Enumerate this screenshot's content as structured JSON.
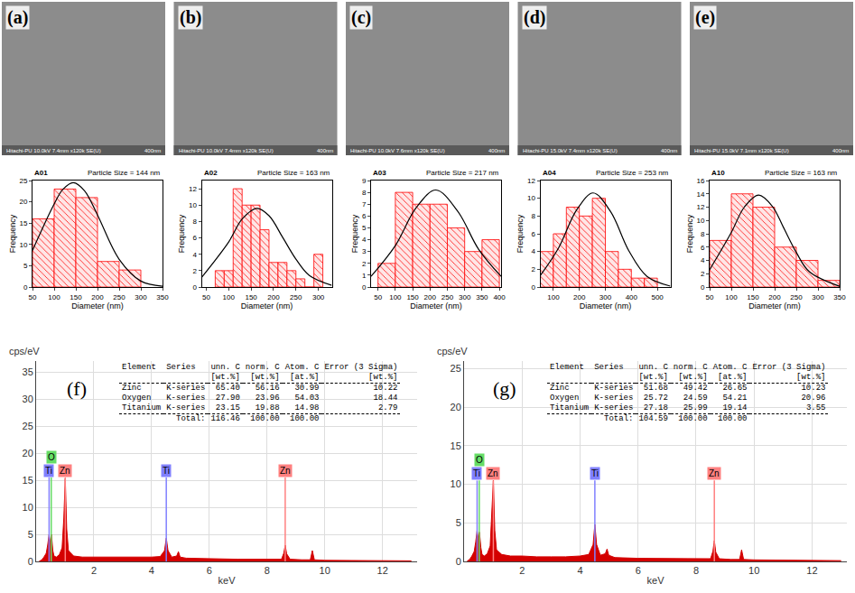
{
  "images": [
    {
      "label": "(a)",
      "info": "Hitachi-PU 10.0kV 7.4mm x120k SE(U)",
      "scale_bar": "400nm"
    },
    {
      "label": "(b)",
      "info": "Hitachi-PU 10.0kV 7.4mm x120k SE(U)",
      "scale_bar": "400nm"
    },
    {
      "label": "(c)",
      "info": "Hitachi-PU 10.0kV 7.6mm x120k SE(U)",
      "scale_bar": "400nm"
    },
    {
      "label": "(d)",
      "info": "Hitachi-PU 15.0kV 7.4mm x120k SE(U)",
      "scale_bar": "400nm"
    },
    {
      "label": "(e)",
      "info": "Hitachi-PU 15.0kV 7.1mm x120k SE(U)",
      "scale_bar": "400nm"
    }
  ],
  "chart_data": [
    {
      "type": "histogram",
      "title": "A01",
      "subtitle": "Particle Size = 144 nm",
      "x_label": "Diameter (nm)",
      "y_label": "Frequency",
      "bins": [
        50,
        100,
        150,
        200,
        250,
        300
      ],
      "counts": [
        16,
        23,
        21,
        6,
        4
      ],
      "color": "#ff0000",
      "curve": {
        "x": [
          50,
          100,
          120,
          144,
          170,
          200,
          250,
          300,
          350
        ],
        "y": [
          8.6,
          19.5,
          22.9,
          24.5,
          22.6,
          16.9,
          6.5,
          1.4,
          0.2
        ],
        "color": "#000000"
      },
      "xlim": [
        50,
        350
      ],
      "xticks": [
        50,
        100,
        150,
        200,
        250,
        300,
        350
      ],
      "ylim": [
        0,
        25
      ],
      "yticks": [
        0,
        5,
        10,
        15,
        20,
        25
      ],
      "grid": false
    },
    {
      "type": "histogram",
      "title": "A02",
      "subtitle": "Particle Size = 163 nm",
      "x_label": "Diameter (nm)",
      "y_label": "Frequency",
      "bins": [
        70,
        90,
        110,
        130,
        150,
        170,
        190,
        210,
        230,
        250,
        270,
        290,
        310
      ],
      "counts": [
        2,
        2,
        12,
        10,
        10,
        7,
        3,
        3,
        2,
        1,
        0,
        4
      ],
      "color": "#ff0000",
      "curve": {
        "x": [
          40,
          100,
          130,
          163,
          190,
          220,
          250,
          280,
          330
        ],
        "y": [
          1.2,
          5.5,
          8.3,
          9.6,
          8.7,
          6.1,
          3.4,
          1.4,
          0.2
        ],
        "color": "#000000"
      },
      "xlim": [
        40,
        330
      ],
      "xticks": [
        50,
        100,
        150,
        200,
        250,
        300
      ],
      "ylim": [
        0,
        13
      ],
      "yticks": [
        0,
        2,
        4,
        6,
        8,
        10,
        12
      ],
      "grid": false
    },
    {
      "type": "histogram",
      "title": "A03",
      "subtitle": "Particle Size = 217 nm",
      "x_label": "Diameter (nm)",
      "y_label": "Frequency",
      "bins": [
        50,
        100,
        150,
        200,
        250,
        300,
        350,
        400
      ],
      "counts": [
        2,
        8,
        7,
        7,
        5,
        3,
        4
      ],
      "color": "#ff0000",
      "curve": {
        "x": [
          30,
          100,
          160,
          217,
          280,
          340,
          405
        ],
        "y": [
          0.9,
          3.5,
          6.7,
          8.2,
          6.4,
          3.2,
          0.9
        ],
        "color": "#000000"
      },
      "xlim": [
        30,
        405
      ],
      "xticks": [
        50,
        100,
        150,
        200,
        250,
        300,
        350,
        400
      ],
      "ylim": [
        0,
        9
      ],
      "yticks": [
        0,
        1,
        2,
        3,
        4,
        5,
        6,
        7,
        8,
        9
      ],
      "grid": false
    },
    {
      "type": "histogram",
      "title": "A04",
      "subtitle": "Particle Size = 253 nm",
      "x_label": "Diameter (nm)",
      "y_label": "Frequency",
      "bins": [
        50,
        100,
        150,
        200,
        250,
        300,
        350,
        400,
        450,
        500
      ],
      "counts": [
        4,
        6,
        9,
        8,
        10,
        4,
        2,
        1,
        1
      ],
      "color": "#ff0000",
      "curve": {
        "x": [
          50,
          120,
          190,
          253,
          320,
          390,
          460,
          550
        ],
        "y": [
          1.3,
          4.4,
          8.7,
          10.6,
          8.5,
          4.1,
          1.2,
          0.1
        ],
        "color": "#000000"
      },
      "xlim": [
        50,
        550
      ],
      "xticks": [
        100,
        200,
        300,
        400,
        500
      ],
      "ylim": [
        0,
        12
      ],
      "yticks": [
        0,
        2,
        4,
        6,
        8,
        10,
        12
      ],
      "grid": false
    },
    {
      "type": "histogram",
      "title": "A10",
      "subtitle": "Particle Size = 163 nm",
      "x_label": "Diameter (nm)",
      "y_label": "Frequency",
      "bins": [
        50,
        100,
        150,
        200,
        250,
        300,
        350
      ],
      "counts": [
        7,
        14,
        12,
        6,
        4,
        1
      ],
      "color": "#ff0000",
      "curve": {
        "x": [
          50,
          100,
          130,
          163,
          195,
          220,
          250,
          280,
          350
        ],
        "y": [
          2.6,
          8.2,
          12.0,
          13.8,
          12.1,
          9.0,
          5.2,
          2.3,
          0.1
        ],
        "color": "#000000"
      },
      "xlim": [
        50,
        350
      ],
      "xticks": [
        50,
        100,
        150,
        200,
        250,
        300,
        350
      ],
      "ylim": [
        0,
        16
      ],
      "yticks": [
        0,
        2,
        4,
        6,
        8,
        10,
        12,
        14,
        16
      ],
      "grid": false
    },
    {
      "type": "area",
      "panel": "(f)",
      "x_label": "keV",
      "y_label": "cps/eV",
      "color": "#d40000",
      "x": [
        0.1,
        0.2,
        0.27,
        0.35,
        0.4,
        0.45,
        0.49,
        0.53,
        0.58,
        0.62,
        0.7,
        0.8,
        0.9,
        0.96,
        1.01,
        1.06,
        1.12,
        1.3,
        1.6,
        2.0,
        2.5,
        3.0,
        3.5,
        4.0,
        4.3,
        4.45,
        4.51,
        4.57,
        4.7,
        4.87,
        4.93,
        4.99,
        5.2,
        6,
        7,
        8,
        8.5,
        8.58,
        8.63,
        8.68,
        8.8,
        9.2,
        9.5,
        9.57,
        9.64,
        10,
        11,
        12,
        13
      ],
      "values": [
        0,
        0.3,
        0.8,
        1.5,
        3,
        5,
        3.5,
        5,
        2,
        1,
        0.8,
        1.2,
        2.5,
        8,
        15.3,
        6,
        2,
        1,
        0.8,
        0.8,
        0.7,
        0.7,
        0.7,
        0.8,
        0.9,
        2,
        4.3,
        2,
        0.8,
        1,
        1.8,
        0.8,
        0.6,
        0.5,
        0.4,
        0.4,
        0.4,
        1.5,
        3.0,
        1.4,
        0.4,
        0.3,
        0.3,
        2.0,
        0.3,
        0.2,
        0.15,
        0.1,
        0.1
      ],
      "xlim": [
        0,
        13.2
      ],
      "xticks": [
        2,
        4,
        6,
        8,
        10,
        12
      ],
      "ylim": [
        0,
        37
      ],
      "yticks": [
        0,
        5,
        10,
        15,
        20,
        25,
        30,
        35
      ],
      "grid": true,
      "marker_height": 15.5,
      "element_lines": [
        {
          "label": "Ti",
          "x": 0.45,
          "color": "#8080ff"
        },
        {
          "label": "O",
          "x": 0.525,
          "color": "#66dd66"
        },
        {
          "label": "Zn",
          "x": 1.01,
          "color": "#ff8080"
        },
        {
          "label": "Ti",
          "x": 4.51,
          "color": "#8080ff"
        },
        {
          "label": "Zn",
          "x": 8.63,
          "color": "#ff8080"
        }
      ],
      "table": {
        "columns": [
          [
            "Element"
          ],
          [
            "Series"
          ],
          [
            "unn. C",
            "[wt.%]"
          ],
          [
            "norm. C",
            "[wt.%]"
          ],
          [
            "Atom. C",
            "[at.%]"
          ],
          [
            "Error (3 Sigma)",
            "[wt.%]"
          ]
        ],
        "rows": [
          [
            "Zinc",
            "K-series",
            "65.40",
            "56.16",
            "30.99",
            "10.22"
          ],
          [
            "Oxygen",
            "K-series",
            "27.90",
            "23.96",
            "54.03",
            "18.44"
          ],
          [
            "Titanium",
            "K-series",
            "23.15",
            "19.88",
            "14.98",
            "2.79"
          ]
        ],
        "total": [
          "Total:",
          "116.46",
          "100.00",
          "100.00"
        ]
      }
    },
    {
      "type": "area",
      "panel": "(g)",
      "x_label": "keV",
      "y_label": "cps/eV",
      "color": "#d40000",
      "x": [
        0.1,
        0.2,
        0.27,
        0.35,
        0.4,
        0.45,
        0.49,
        0.53,
        0.58,
        0.62,
        0.7,
        0.8,
        0.9,
        0.96,
        1.01,
        1.06,
        1.12,
        1.3,
        1.6,
        2.0,
        2.5,
        3.0,
        3.5,
        4.0,
        4.3,
        4.45,
        4.51,
        4.57,
        4.7,
        4.87,
        4.93,
        4.99,
        5.2,
        6,
        7,
        8,
        8.5,
        8.58,
        8.63,
        8.68,
        8.8,
        9.2,
        9.5,
        9.57,
        9.64,
        10,
        11,
        12,
        13
      ],
      "values": [
        0,
        0.3,
        0.7,
        1.3,
        2.5,
        4,
        3,
        3.8,
        1.8,
        0.9,
        0.7,
        1,
        2,
        6,
        10.5,
        4,
        1.5,
        0.9,
        0.7,
        0.7,
        0.6,
        0.6,
        0.6,
        0.7,
        0.9,
        2.2,
        4.8,
        2.2,
        0.8,
        1,
        1.6,
        0.8,
        0.5,
        0.4,
        0.35,
        0.3,
        0.35,
        1.3,
        2.7,
        1.2,
        0.35,
        0.25,
        0.25,
        1.5,
        0.25,
        0.2,
        0.15,
        0.1,
        0.1
      ],
      "xlim": [
        0,
        13.2
      ],
      "xticks": [
        2,
        4,
        6,
        8,
        10,
        12
      ],
      "ylim": [
        0,
        26
      ],
      "yticks": [
        0,
        5,
        10,
        15,
        20,
        25
      ],
      "grid": true,
      "marker_height": 10.5,
      "element_lines": [
        {
          "label": "Ti",
          "x": 0.45,
          "color": "#8080ff"
        },
        {
          "label": "O",
          "x": 0.525,
          "color": "#66dd66"
        },
        {
          "label": "Zn",
          "x": 1.01,
          "color": "#ff8080"
        },
        {
          "label": "Ti",
          "x": 4.51,
          "color": "#8080ff"
        },
        {
          "label": "Zn",
          "x": 8.63,
          "color": "#ff8080"
        }
      ],
      "table": {
        "columns": [
          [
            "Element"
          ],
          [
            "Series"
          ],
          [
            "unn. C",
            "[wt.%]"
          ],
          [
            "norm. C",
            "[wt.%]"
          ],
          [
            "Atom. C",
            "[at.%]"
          ],
          [
            "Error (3 Sigma)",
            "[wt.%]"
          ]
        ],
        "rows": [
          [
            "Zinc",
            "K-series",
            "51.68",
            "49.42",
            "26.65",
            "10.23"
          ],
          [
            "Oxygen",
            "K-series",
            "25.72",
            "24.59",
            "54.21",
            "20.96"
          ],
          [
            "Titanium",
            "K-series",
            "27.18",
            "25.99",
            "19.14",
            "3.55"
          ]
        ],
        "total": [
          "Total:",
          "104.59",
          "100.00",
          "100.00"
        ]
      }
    }
  ]
}
